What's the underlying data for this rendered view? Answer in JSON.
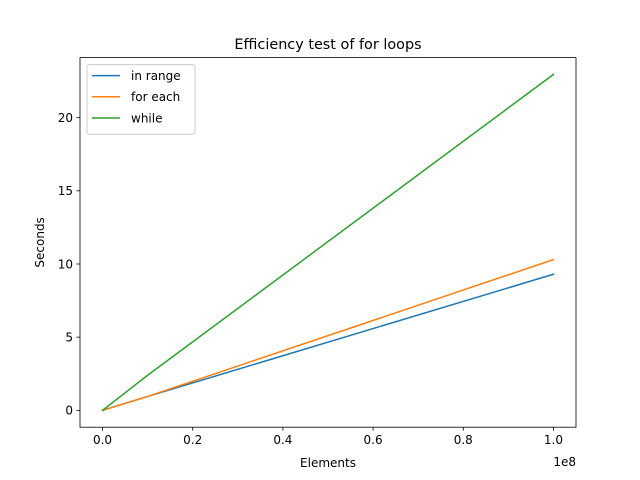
{
  "chart_data": {
    "type": "line",
    "title": "Efficiency test of for loops",
    "xlabel": "Elements",
    "ylabel": "Seconds",
    "x_offset_label": "1e8",
    "xlim": [
      -5000000,
      105000000
    ],
    "ylim": [
      -1.15,
      24.1
    ],
    "xticks": [
      0,
      20000000,
      40000000,
      60000000,
      80000000,
      100000000
    ],
    "xtick_labels": [
      "0.0",
      "0.2",
      "0.4",
      "0.6",
      "0.8",
      "1.0"
    ],
    "yticks": [
      0,
      5,
      10,
      15,
      20
    ],
    "ytick_labels": [
      "0",
      "5",
      "10",
      "15",
      "20"
    ],
    "grid": false,
    "legend_position": "upper-left",
    "x": [
      0,
      10000000,
      100000000
    ],
    "series": [
      {
        "name": "in range",
        "color": "#1f77b4",
        "values": [
          0,
          0.95,
          9.3
        ]
      },
      {
        "name": "for each",
        "color": "#ff7f0e",
        "values": [
          0,
          0.95,
          10.3
        ]
      },
      {
        "name": "while",
        "color": "#2ca02c",
        "values": [
          0,
          2.4,
          22.95
        ]
      }
    ]
  }
}
